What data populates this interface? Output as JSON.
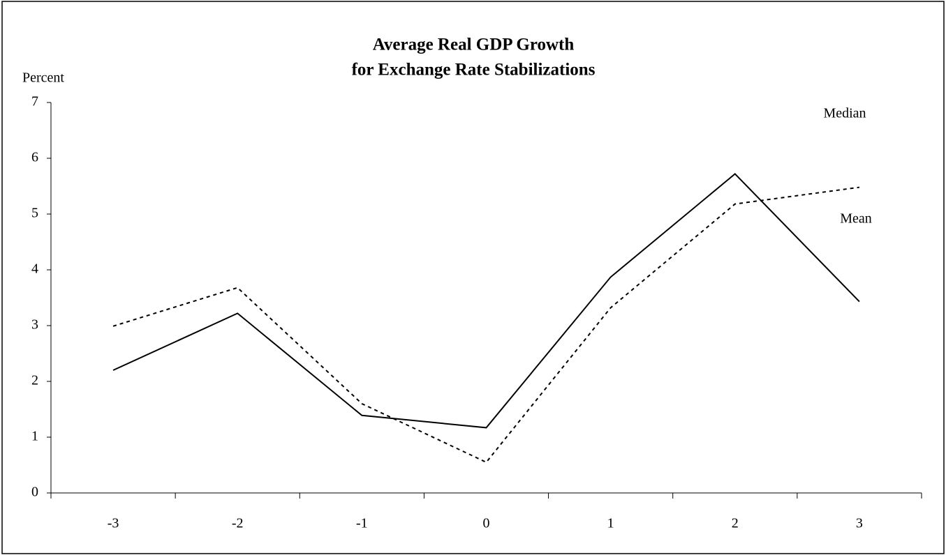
{
  "chart_data": {
    "type": "line",
    "title": [
      "Average Real GDP Growth",
      "for Exchange Rate Stabilizations"
    ],
    "y_label": "Percent",
    "categories": [
      "-3",
      "-2",
      "-1",
      "0",
      "1",
      "2",
      "3"
    ],
    "series": [
      {
        "name": "Median",
        "color": "#000000",
        "line_style": "dashed",
        "values": [
          2.99,
          3.68,
          1.6,
          0.55,
          3.32,
          5.18,
          5.48
        ]
      },
      {
        "name": "Mean",
        "color": "#000000",
        "line_style": "solid",
        "values": [
          2.2,
          3.22,
          1.39,
          1.17,
          3.87,
          5.72,
          3.43
        ]
      }
    ],
    "ylim": [
      0,
      7
    ],
    "yticks": [
      0,
      1,
      2,
      3,
      4,
      5,
      6,
      7
    ]
  }
}
